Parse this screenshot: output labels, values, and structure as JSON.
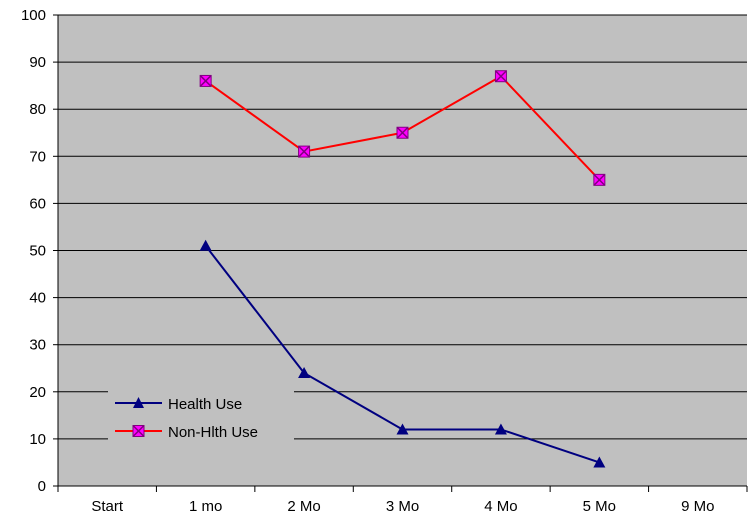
{
  "chart_data": {
    "type": "line",
    "title": "",
    "xlabel": "",
    "ylabel": "",
    "categories": [
      "Start",
      "1 mo",
      "2 Mo",
      "3 Mo",
      "4 Mo",
      "5 Mo",
      "9 Mo"
    ],
    "ylim": [
      0,
      100
    ],
    "yticks": [
      0,
      10,
      20,
      30,
      40,
      50,
      60,
      70,
      80,
      90,
      100
    ],
    "grid": true,
    "legend_position": "bottom-left",
    "plot_background": "#c0c0c0",
    "series": [
      {
        "name": "Health Use",
        "color": "#000080",
        "marker": "triangle",
        "values": [
          null,
          51,
          24,
          12,
          12,
          5,
          null
        ]
      },
      {
        "name": "Non-Hlth Use",
        "color": "#ff0000",
        "marker": "square-x",
        "marker_fill": "#ff00ff",
        "values": [
          null,
          86,
          71,
          75,
          87,
          65,
          null
        ]
      }
    ]
  }
}
